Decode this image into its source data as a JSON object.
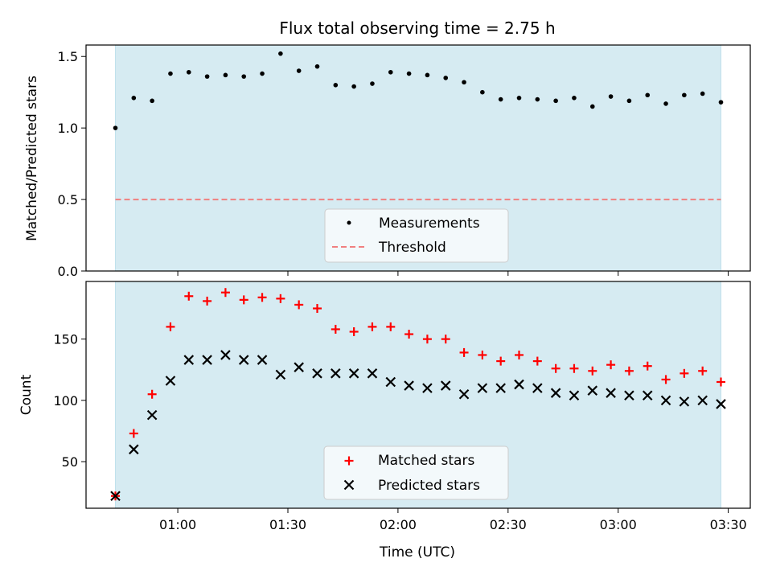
{
  "title": "Flux total observing time = 2.75 h",
  "colors": {
    "shade": "#add8e6",
    "measurement": "#000000",
    "threshold": "#f08080",
    "matched": "#ff0000",
    "predicted": "#000000"
  },
  "chart_data": [
    {
      "type": "scatter",
      "ylabel": "Matched/Predicted stars",
      "xlim": [
        "00:35",
        "03:36"
      ],
      "ylim": [
        0,
        1.58
      ],
      "yticks": [
        "0.0",
        "0.5",
        "1.0",
        "1.5"
      ],
      "shaded_span": [
        "00:43",
        "03:28"
      ],
      "threshold": 0.5,
      "legend": {
        "position": "lower center",
        "entries": [
          "Measurements",
          "Threshold"
        ]
      },
      "series": [
        {
          "name": "Measurements",
          "marker": "dot",
          "x": [
            "00:43",
            "00:48",
            "00:53",
            "00:58",
            "01:03",
            "01:08",
            "01:13",
            "01:18",
            "01:23",
            "01:28",
            "01:33",
            "01:38",
            "01:43",
            "01:48",
            "01:53",
            "01:58",
            "02:03",
            "02:08",
            "02:13",
            "02:18",
            "02:23",
            "02:28",
            "02:33",
            "02:38",
            "02:43",
            "02:48",
            "02:53",
            "02:58",
            "03:03",
            "03:08",
            "03:13",
            "03:18",
            "03:23",
            "03:28"
          ],
          "y": [
            1.0,
            1.21,
            1.19,
            1.38,
            1.39,
            1.36,
            1.37,
            1.36,
            1.38,
            1.52,
            1.4,
            1.43,
            1.3,
            1.29,
            1.31,
            1.39,
            1.38,
            1.37,
            1.35,
            1.32,
            1.25,
            1.2,
            1.21,
            1.2,
            1.19,
            1.21,
            1.15,
            1.22,
            1.19,
            1.23,
            1.17,
            1.23,
            1.24,
            1.18
          ]
        }
      ]
    },
    {
      "type": "scatter",
      "xlabel": "Time (UTC)",
      "ylabel": "Count",
      "xlim": [
        "00:35",
        "03:36"
      ],
      "ylim": [
        12,
        197
      ],
      "yticks": [
        "50",
        "100",
        "150"
      ],
      "xticks": [
        "01:00",
        "01:30",
        "02:00",
        "02:30",
        "03:00",
        "03:30"
      ],
      "shaded_span": [
        "00:43",
        "03:28"
      ],
      "legend": {
        "position": "lower center",
        "entries": [
          "Matched stars",
          "Predicted stars"
        ]
      },
      "x": [
        "00:43",
        "00:48",
        "00:53",
        "00:58",
        "01:03",
        "01:08",
        "01:13",
        "01:18",
        "01:23",
        "01:28",
        "01:33",
        "01:38",
        "01:43",
        "01:48",
        "01:53",
        "01:58",
        "02:03",
        "02:08",
        "02:13",
        "02:18",
        "02:23",
        "02:28",
        "02:33",
        "02:38",
        "02:43",
        "02:48",
        "02:53",
        "02:58",
        "03:03",
        "03:08",
        "03:13",
        "03:18",
        "03:23",
        "03:28"
      ],
      "series": [
        {
          "name": "Matched stars",
          "marker": "plus",
          "values": [
            22,
            73,
            105,
            160,
            185,
            181,
            188,
            182,
            184,
            183,
            178,
            175,
            158,
            156,
            160,
            160,
            154,
            150,
            150,
            139,
            137,
            132,
            137,
            132,
            126,
            126,
            124,
            129,
            124,
            128,
            117,
            122,
            124,
            115
          ]
        },
        {
          "name": "Predicted stars",
          "marker": "x",
          "values": [
            22,
            60,
            88,
            116,
            133,
            133,
            137,
            133,
            133,
            121,
            127,
            122,
            122,
            122,
            122,
            115,
            112,
            110,
            112,
            105,
            110,
            110,
            113,
            110,
            106,
            104,
            108,
            106,
            104,
            104,
            100,
            99,
            100,
            97
          ]
        }
      ]
    }
  ]
}
